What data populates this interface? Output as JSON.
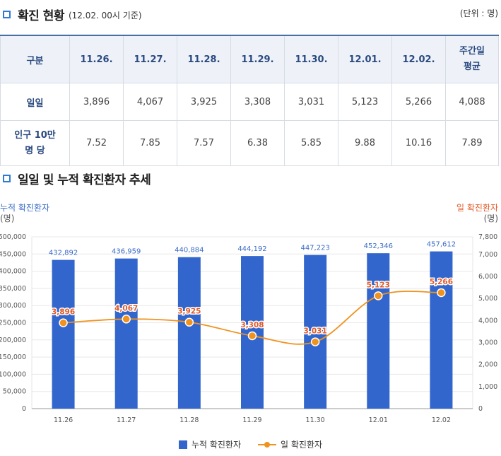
{
  "section1": {
    "title": "확진 현황",
    "subtitle": "(12.02. 00시 기준)",
    "unit": "(단위 : 명)"
  },
  "table": {
    "header": [
      "구분",
      "11.26.",
      "11.27.",
      "11.28.",
      "11.29.",
      "11.30.",
      "12.01.",
      "12.02."
    ],
    "header_avg": "주간일 평균",
    "rows": [
      {
        "label": "일일",
        "values": [
          "3,896",
          "4,067",
          "3,925",
          "3,308",
          "3,031",
          "5,123",
          "5,266",
          "4,088"
        ]
      },
      {
        "label": "인구 10만 명 당",
        "values": [
          "7.52",
          "7.85",
          "7.57",
          "6.38",
          "5.85",
          "9.88",
          "10.16",
          "7.89"
        ]
      }
    ]
  },
  "section2": {
    "title": "일일 및 누적 확진환자 추세"
  },
  "colors": {
    "bar": "#3366cc",
    "line": "#f0921e",
    "point": "#f0921e",
    "accent": "#2e7bd6",
    "right_axis_text": "#e05a2b",
    "left_axis_text": "#3a6cc7"
  },
  "chart_data": {
    "type": "bar+line",
    "categories": [
      "11.26",
      "11.27",
      "11.28",
      "11.29",
      "11.30",
      "12.01",
      "12.02"
    ],
    "series": [
      {
        "name": "누적 확진환자",
        "type": "bar",
        "axis": "left",
        "values": [
          432892,
          436959,
          440884,
          444192,
          447223,
          452346,
          457612
        ],
        "labels": [
          "432,892",
          "436,959",
          "440,884",
          "444,192",
          "447,223",
          "452,346",
          "457,612"
        ]
      },
      {
        "name": "일 확진환자",
        "type": "line",
        "axis": "right",
        "values": [
          3896,
          4067,
          3925,
          3308,
          3031,
          5123,
          5266
        ],
        "labels": [
          "3,896",
          "4,067",
          "3,925",
          "3,308",
          "3,031",
          "5,123",
          "5,266"
        ]
      }
    ],
    "left_axis": {
      "label": "누적 확진환자",
      "unit": "(명)",
      "min": 0,
      "max": 500000,
      "ticks": [
        "0",
        "50,000",
        "100,000",
        "150,000",
        "200,000",
        "250,000",
        "300,000",
        "350,000",
        "400,000",
        "450,000",
        "500,000"
      ]
    },
    "right_axis": {
      "label": "일 확진환자",
      "unit": "(명)",
      "min": 0,
      "max": 7800,
      "ticks": [
        "0",
        "1,000",
        "2,000",
        "3,000",
        "4,000",
        "5,000",
        "6,000",
        "7,000",
        "7,800"
      ]
    },
    "grid": true,
    "legend": "bottom"
  },
  "legend": {
    "bar_label": "누적 확진환자",
    "line_label": "일 확진환자"
  }
}
